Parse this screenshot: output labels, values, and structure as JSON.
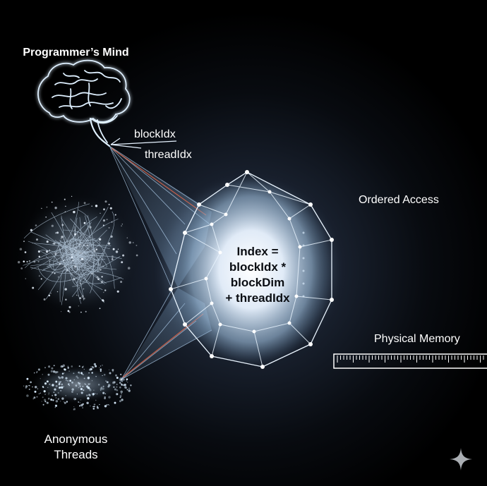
{
  "labels": {
    "programmers_mind": "Programmer’s Mind",
    "block_idx": "blockIdx",
    "thread_idx": "threadIdx",
    "ordered_access": "Ordered Access",
    "physical_memory": "Physical Memory",
    "anonymous_threads_line1": "Anonymous",
    "anonymous_threads_line2": "Threads"
  },
  "formula": {
    "line1": "Index =",
    "line2": "blockIdx *",
    "line3": "blockDim",
    "line4": "+ threadIdx"
  },
  "colors": {
    "background": "#000000",
    "glow": "#cfe6ff",
    "accent_red": "#e0664a"
  },
  "icons": {
    "brain": "brain-icon",
    "gem": "polyhedron-icon",
    "corner": "sparkle-icon"
  }
}
